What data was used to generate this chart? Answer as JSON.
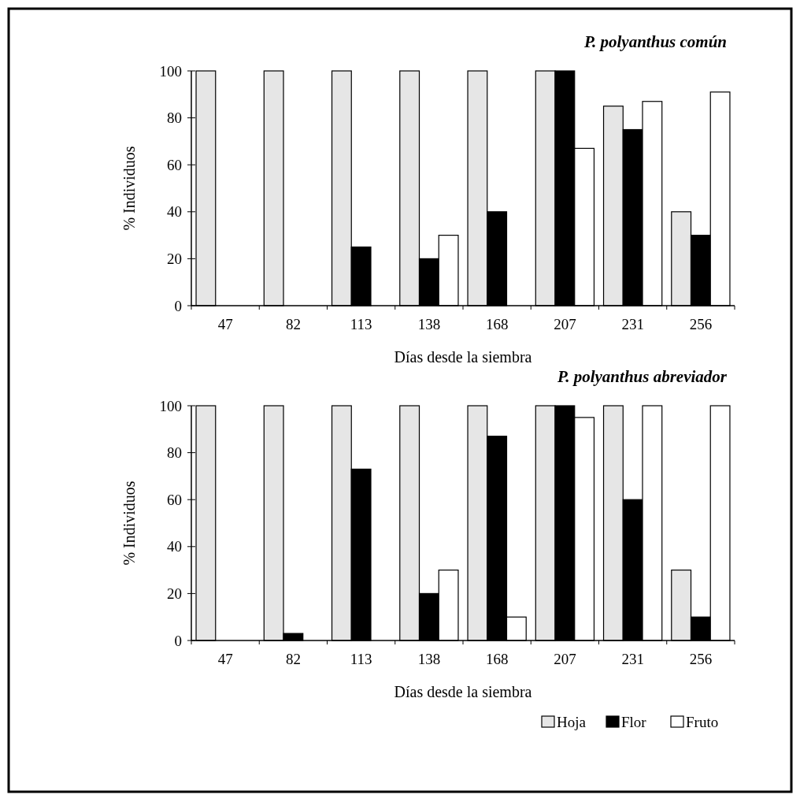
{
  "chart_data": [
    {
      "type": "bar",
      "title": "P. polyanthus común",
      "xlabel": "Días desde la siembra",
      "ylabel": "% Individuos",
      "categories": [
        "47",
        "82",
        "113",
        "138",
        "168",
        "207",
        "231",
        "256"
      ],
      "series": [
        {
          "color": "#e6e6e6",
          "values": [
            100,
            100,
            100,
            100,
            100,
            100,
            85,
            40
          ]
        },
        {
          "color": "#000000",
          "values": [
            0,
            0,
            25,
            20,
            40,
            100,
            75,
            30
          ]
        },
        {
          "color": "#ffffff",
          "values": [
            0,
            0,
            0,
            30,
            0,
            67,
            87,
            91
          ]
        }
      ],
      "ylim": [
        0,
        100
      ],
      "yticks": [
        0,
        20,
        40,
        60,
        80,
        100
      ],
      "grid": false,
      "legend": false
    },
    {
      "type": "bar",
      "title": "P. polyanthus abreviador",
      "xlabel": "Días desde la siembra",
      "ylabel": "% Individuos",
      "categories": [
        "47",
        "82",
        "113",
        "138",
        "168",
        "207",
        "231",
        "256"
      ],
      "series": [
        {
          "name": "Hoja",
          "color": "#e6e6e6",
          "values": [
            100,
            100,
            100,
            100,
            100,
            100,
            100,
            30
          ]
        },
        {
          "name": "Flor",
          "color": "#000000",
          "values": [
            0,
            3,
            73,
            20,
            87,
            100,
            60,
            10
          ]
        },
        {
          "name": "Fruto",
          "color": "#ffffff",
          "values": [
            0,
            0,
            0,
            30,
            10,
            95,
            100,
            100
          ]
        }
      ],
      "ylim": [
        0,
        100
      ],
      "yticks": [
        0,
        20,
        40,
        60,
        80,
        100
      ],
      "grid": false,
      "legend": "bottom right"
    }
  ]
}
